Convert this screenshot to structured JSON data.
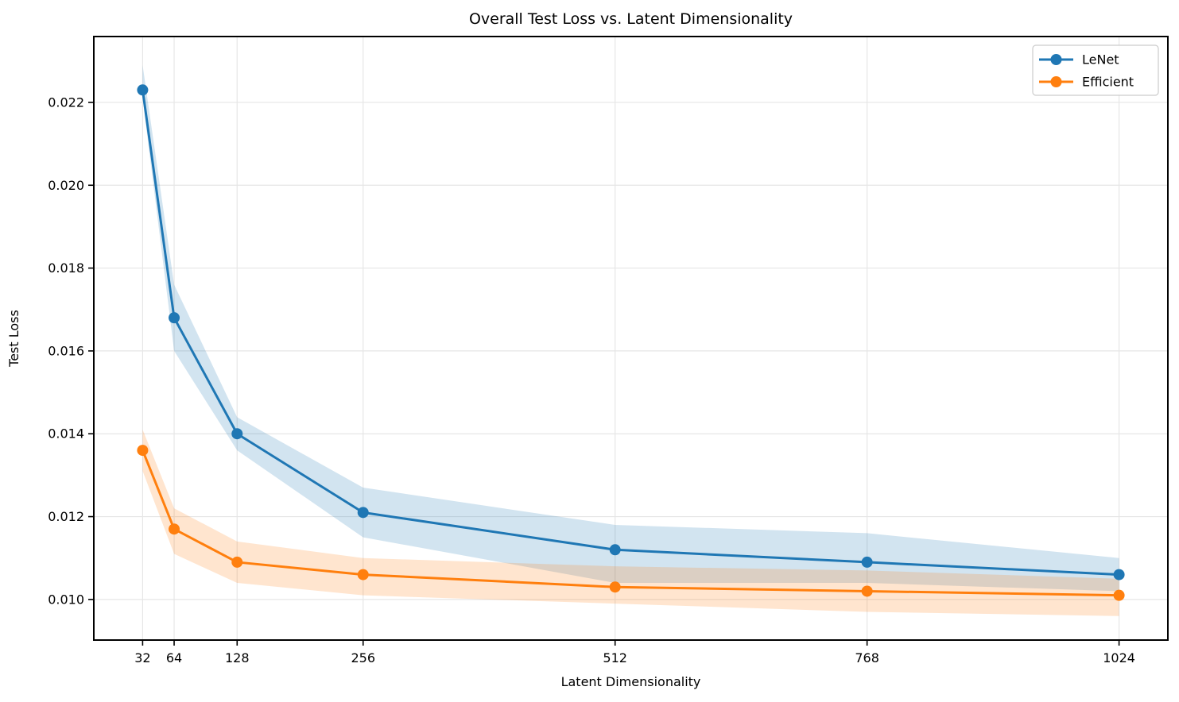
{
  "figure": {
    "background": "#ffffff"
  },
  "chart_data": {
    "type": "line",
    "title": "Overall Test Loss vs. Latent Dimensionality",
    "xlabel": "Latent Dimensionality",
    "ylabel": "Test Loss",
    "x": [
      32,
      64,
      128,
      256,
      512,
      768,
      1024
    ],
    "xticks": [
      32,
      64,
      128,
      256,
      512,
      768,
      1024
    ],
    "xtick_labels": [
      "32",
      "64",
      "128",
      "256",
      "512",
      "768",
      "1024"
    ],
    "yticks": [
      0.01,
      0.012,
      0.014,
      0.016,
      0.018,
      0.02,
      0.022
    ],
    "ytick_labels": [
      "0.010",
      "0.012",
      "0.014",
      "0.016",
      "0.018",
      "0.020",
      "0.022"
    ],
    "xlim": [
      -17.6,
      1073.6
    ],
    "ylim": [
      0.00902,
      0.02359
    ],
    "grid": true,
    "legend_position": "upper right",
    "series": [
      {
        "name": "LeNet",
        "color": "#1f77b4",
        "values": [
          0.0223,
          0.0168,
          0.014,
          0.0121,
          0.0112,
          0.0109,
          0.0106
        ],
        "band_lower": [
          0.0221,
          0.016,
          0.0136,
          0.0115,
          0.0104,
          0.0104,
          0.0102
        ],
        "band_upper": [
          0.0229,
          0.0176,
          0.0144,
          0.0127,
          0.0118,
          0.0116,
          0.011
        ],
        "band_alpha": 0.2
      },
      {
        "name": "Efficient",
        "color": "#ff7f0e",
        "values": [
          0.0136,
          0.0117,
          0.0109,
          0.0106,
          0.0103,
          0.0102,
          0.0101
        ],
        "band_lower": [
          0.0131,
          0.0111,
          0.0104,
          0.0101,
          0.0099,
          0.0097,
          0.0096
        ],
        "band_upper": [
          0.0141,
          0.0122,
          0.0114,
          0.011,
          0.0108,
          0.0107,
          0.0105
        ],
        "band_alpha": 0.2
      }
    ],
    "style": {
      "grid_color": "#e6e6e6",
      "frame_color": "#000000",
      "tick_color": "#000000",
      "text_color": "#000000",
      "legend_border_color": "#cccccc",
      "plot_background": "#ffffff"
    }
  }
}
